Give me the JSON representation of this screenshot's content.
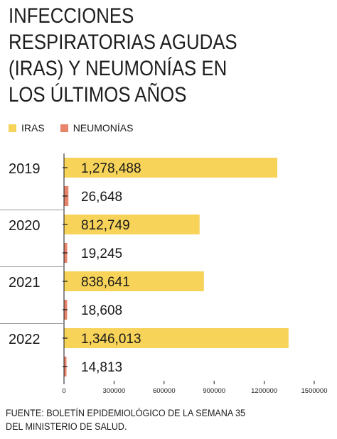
{
  "title_lines": [
    "INFECCIONES",
    "RESPIRATORIAS AGUDAS",
    "(IRAS) Y NEUMONÍAS EN",
    "LOS ÚLTIMOS AÑOS"
  ],
  "source_lines": [
    "FUENTE: BOLETÍN EPIDEMIOLÓGICO DE LA SEMANA 35",
    "DEL MINISTERIO DE SALUD."
  ],
  "colors": {
    "iras": "#f7d35a",
    "neumonias": "#e8846b",
    "separator": "#9a9a9a"
  },
  "chart_data": {
    "type": "bar",
    "orientation": "horizontal",
    "categories": [
      "2019",
      "2020",
      "2021",
      "2022"
    ],
    "series": [
      {
        "name": "IRAS",
        "values": [
          1278488,
          812749,
          838641,
          1346013
        ],
        "labels": [
          "1,278,488",
          "812,749",
          "838,641",
          "1,346,013"
        ]
      },
      {
        "name": "NEUMONÍAS",
        "values": [
          26648,
          19245,
          18608,
          14813
        ],
        "labels": [
          "26,648",
          "19,245",
          "18,608",
          "14,813"
        ]
      }
    ],
    "xlim": [
      0,
      1500000
    ],
    "xticks": [
      "0",
      "300000",
      "600000",
      "900000",
      "1200000",
      "1500000"
    ],
    "legend_position": "top-left",
    "grid": false
  }
}
